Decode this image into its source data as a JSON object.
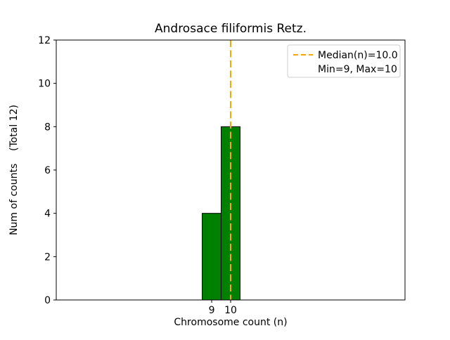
{
  "chart_data": {
    "type": "bar",
    "title": "Androsace filiformis Retz.",
    "xlabel": "Chromosome count (n)",
    "ylabel": "Num of counts    (Total 12)",
    "categories": [
      9,
      10
    ],
    "values": [
      4,
      8
    ],
    "total_counts": 12,
    "min_n": 9,
    "max_n": 10,
    "median_n": 10.0,
    "bar_width": 1,
    "xlim": [
      0.8,
      19.2
    ],
    "ylim": [
      0,
      12
    ],
    "xticks": [
      9,
      10
    ],
    "yticks": [
      0,
      2,
      4,
      6,
      8,
      10,
      12
    ],
    "grid": false,
    "median_line": {
      "x": 10,
      "style": "dashed"
    },
    "legend": {
      "position": "upper right",
      "entries": [
        {
          "handle": "dashed-line",
          "label": "Median(n)=10.0"
        },
        {
          "handle": "none",
          "label": "Min=9, Max=10"
        }
      ]
    },
    "colors": {
      "bar_fill": "#008000",
      "bar_edge": "#000000",
      "median_line": "#FFA500",
      "axes": "#000000",
      "legend_border": "#cccccc",
      "background": "#ffffff"
    }
  }
}
